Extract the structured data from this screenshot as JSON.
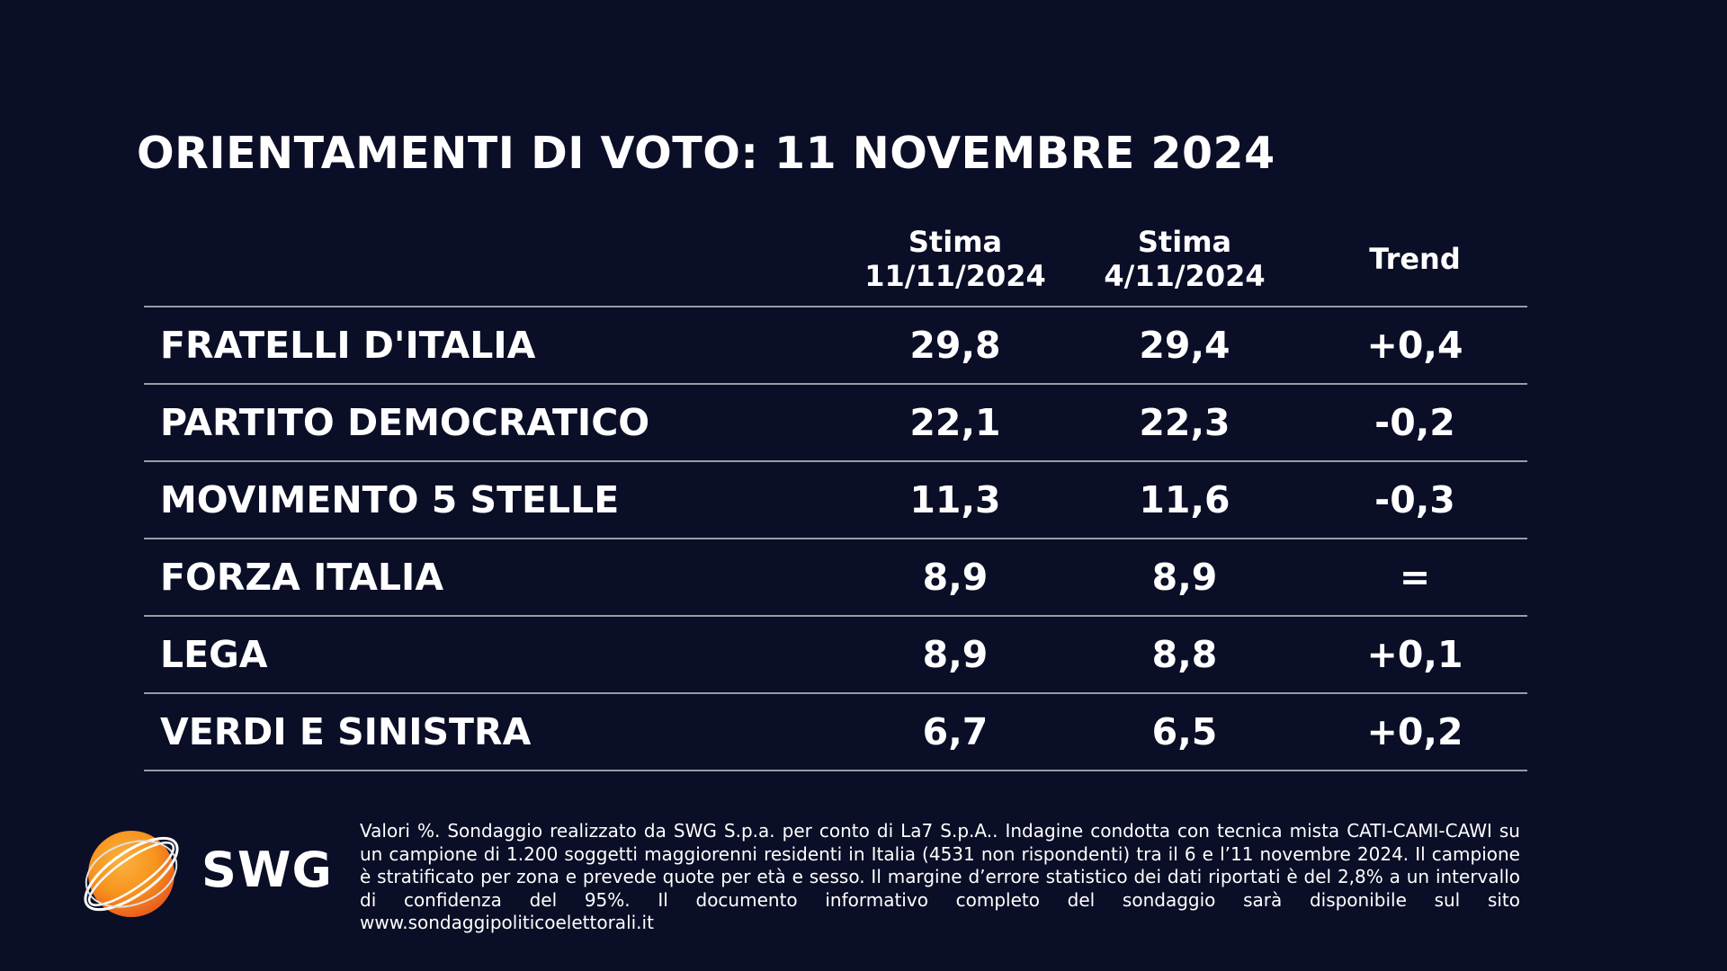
{
  "title": "ORIENTAMENTI DI VOTO: 11 NOVEMBRE 2024",
  "chart_data": {
    "type": "table",
    "title": "ORIENTAMENTI DI VOTO: 11 NOVEMBRE 2024",
    "columns": [
      {
        "line1": "Stima",
        "line2": "11/11/2024"
      },
      {
        "line1": "Stima",
        "line2": "4/11/2024"
      },
      {
        "line1": "Trend",
        "line2": ""
      }
    ],
    "rows": [
      {
        "party": "FRATELLI D'ITALIA",
        "current": "29,8",
        "previous": "29,4",
        "trend": "+0,4"
      },
      {
        "party": "PARTITO DEMOCRATICO",
        "current": "22,1",
        "previous": "22,3",
        "trend": "-0,2"
      },
      {
        "party": "MOVIMENTO 5 STELLE",
        "current": "11,3",
        "previous": "11,6",
        "trend": "-0,3"
      },
      {
        "party": "FORZA ITALIA",
        "current": "8,9",
        "previous": "8,9",
        "trend": "="
      },
      {
        "party": "LEGA",
        "current": "8,9",
        "previous": "8,8",
        "trend": "+0,1"
      },
      {
        "party": "VERDI E SINISTRA",
        "current": "6,7",
        "previous": "6,5",
        "trend": "+0,2"
      }
    ]
  },
  "logo": {
    "text": "SWG",
    "icon": "orange-globe-with-orbit-icon",
    "colors": {
      "orange": "#f7941d",
      "dark_orange": "#e8571e"
    }
  },
  "footnote": "Valori %. Sondaggio realizzato da SWG S.p.a. per conto di La7 S.p.A.. Indagine condotta con tecnica mista CATI-CAMI-CAWI su un campione di 1.200 soggetti maggiorenni residenti in Italia (4531 non rispondenti) tra il 6 e l’11 novembre 2024. Il campione è stratificato per zona e prevede quote per età e sesso. Il margine d’errore statistico dei dati riportati è del 2,8% a un intervallo di confidenza del 95%. Il documento informativo completo del sondaggio sarà disponibile sul sito www.sondaggipoliticoelettorali.it",
  "colors": {
    "background": "#0a0e26",
    "text": "#ffffff",
    "divider": "#9a9ca6"
  }
}
